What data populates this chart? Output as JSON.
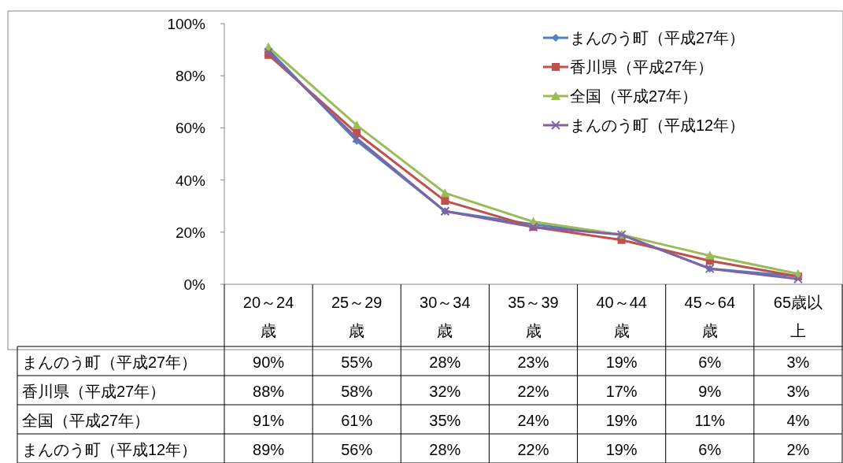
{
  "chart_data": {
    "type": "line",
    "categories": [
      "20～24歳",
      "25～29歳",
      "30～34歳",
      "35～39歳",
      "40～44歳",
      "45～64歳",
      "65歳以上"
    ],
    "series": [
      {
        "name": "まんのう町（平成27年）",
        "color": "#4f81bd",
        "marker": "diamond",
        "values": [
          90,
          55,
          28,
          23,
          19,
          6,
          3
        ],
        "value_labels": [
          "90%",
          "55%",
          "28%",
          "23%",
          "19%",
          "6%",
          "3%"
        ]
      },
      {
        "name": "香川県（平成27年）",
        "color": "#c0504d",
        "marker": "square",
        "values": [
          88,
          58,
          32,
          22,
          17,
          9,
          3
        ],
        "value_labels": [
          "88%",
          "58%",
          "32%",
          "22%",
          "17%",
          "9%",
          "3%"
        ]
      },
      {
        "name": "全国（平成27年）",
        "color": "#9bbb59",
        "marker": "triangle",
        "values": [
          91,
          61,
          35,
          24,
          19,
          11,
          4
        ],
        "value_labels": [
          "91%",
          "61%",
          "35%",
          "24%",
          "19%",
          "11%",
          "4%"
        ]
      },
      {
        "name": "まんのう町（平成12年）",
        "color": "#8064a2",
        "marker": "cross",
        "values": [
          89,
          56,
          28,
          22,
          19,
          6,
          2
        ],
        "value_labels": [
          "89%",
          "56%",
          "28%",
          "22%",
          "19%",
          "6%",
          "2%"
        ]
      }
    ],
    "ylim": [
      0,
      100
    ],
    "yticks": [
      {
        "value": 0,
        "label": "0%"
      },
      {
        "value": 20,
        "label": "20%"
      },
      {
        "value": 40,
        "label": "40%"
      },
      {
        "value": 60,
        "label": "60%"
      },
      {
        "value": 80,
        "label": "80%"
      },
      {
        "value": 100,
        "label": "100%"
      }
    ],
    "grid": false,
    "legend": "top right",
    "line_style": "solid"
  }
}
